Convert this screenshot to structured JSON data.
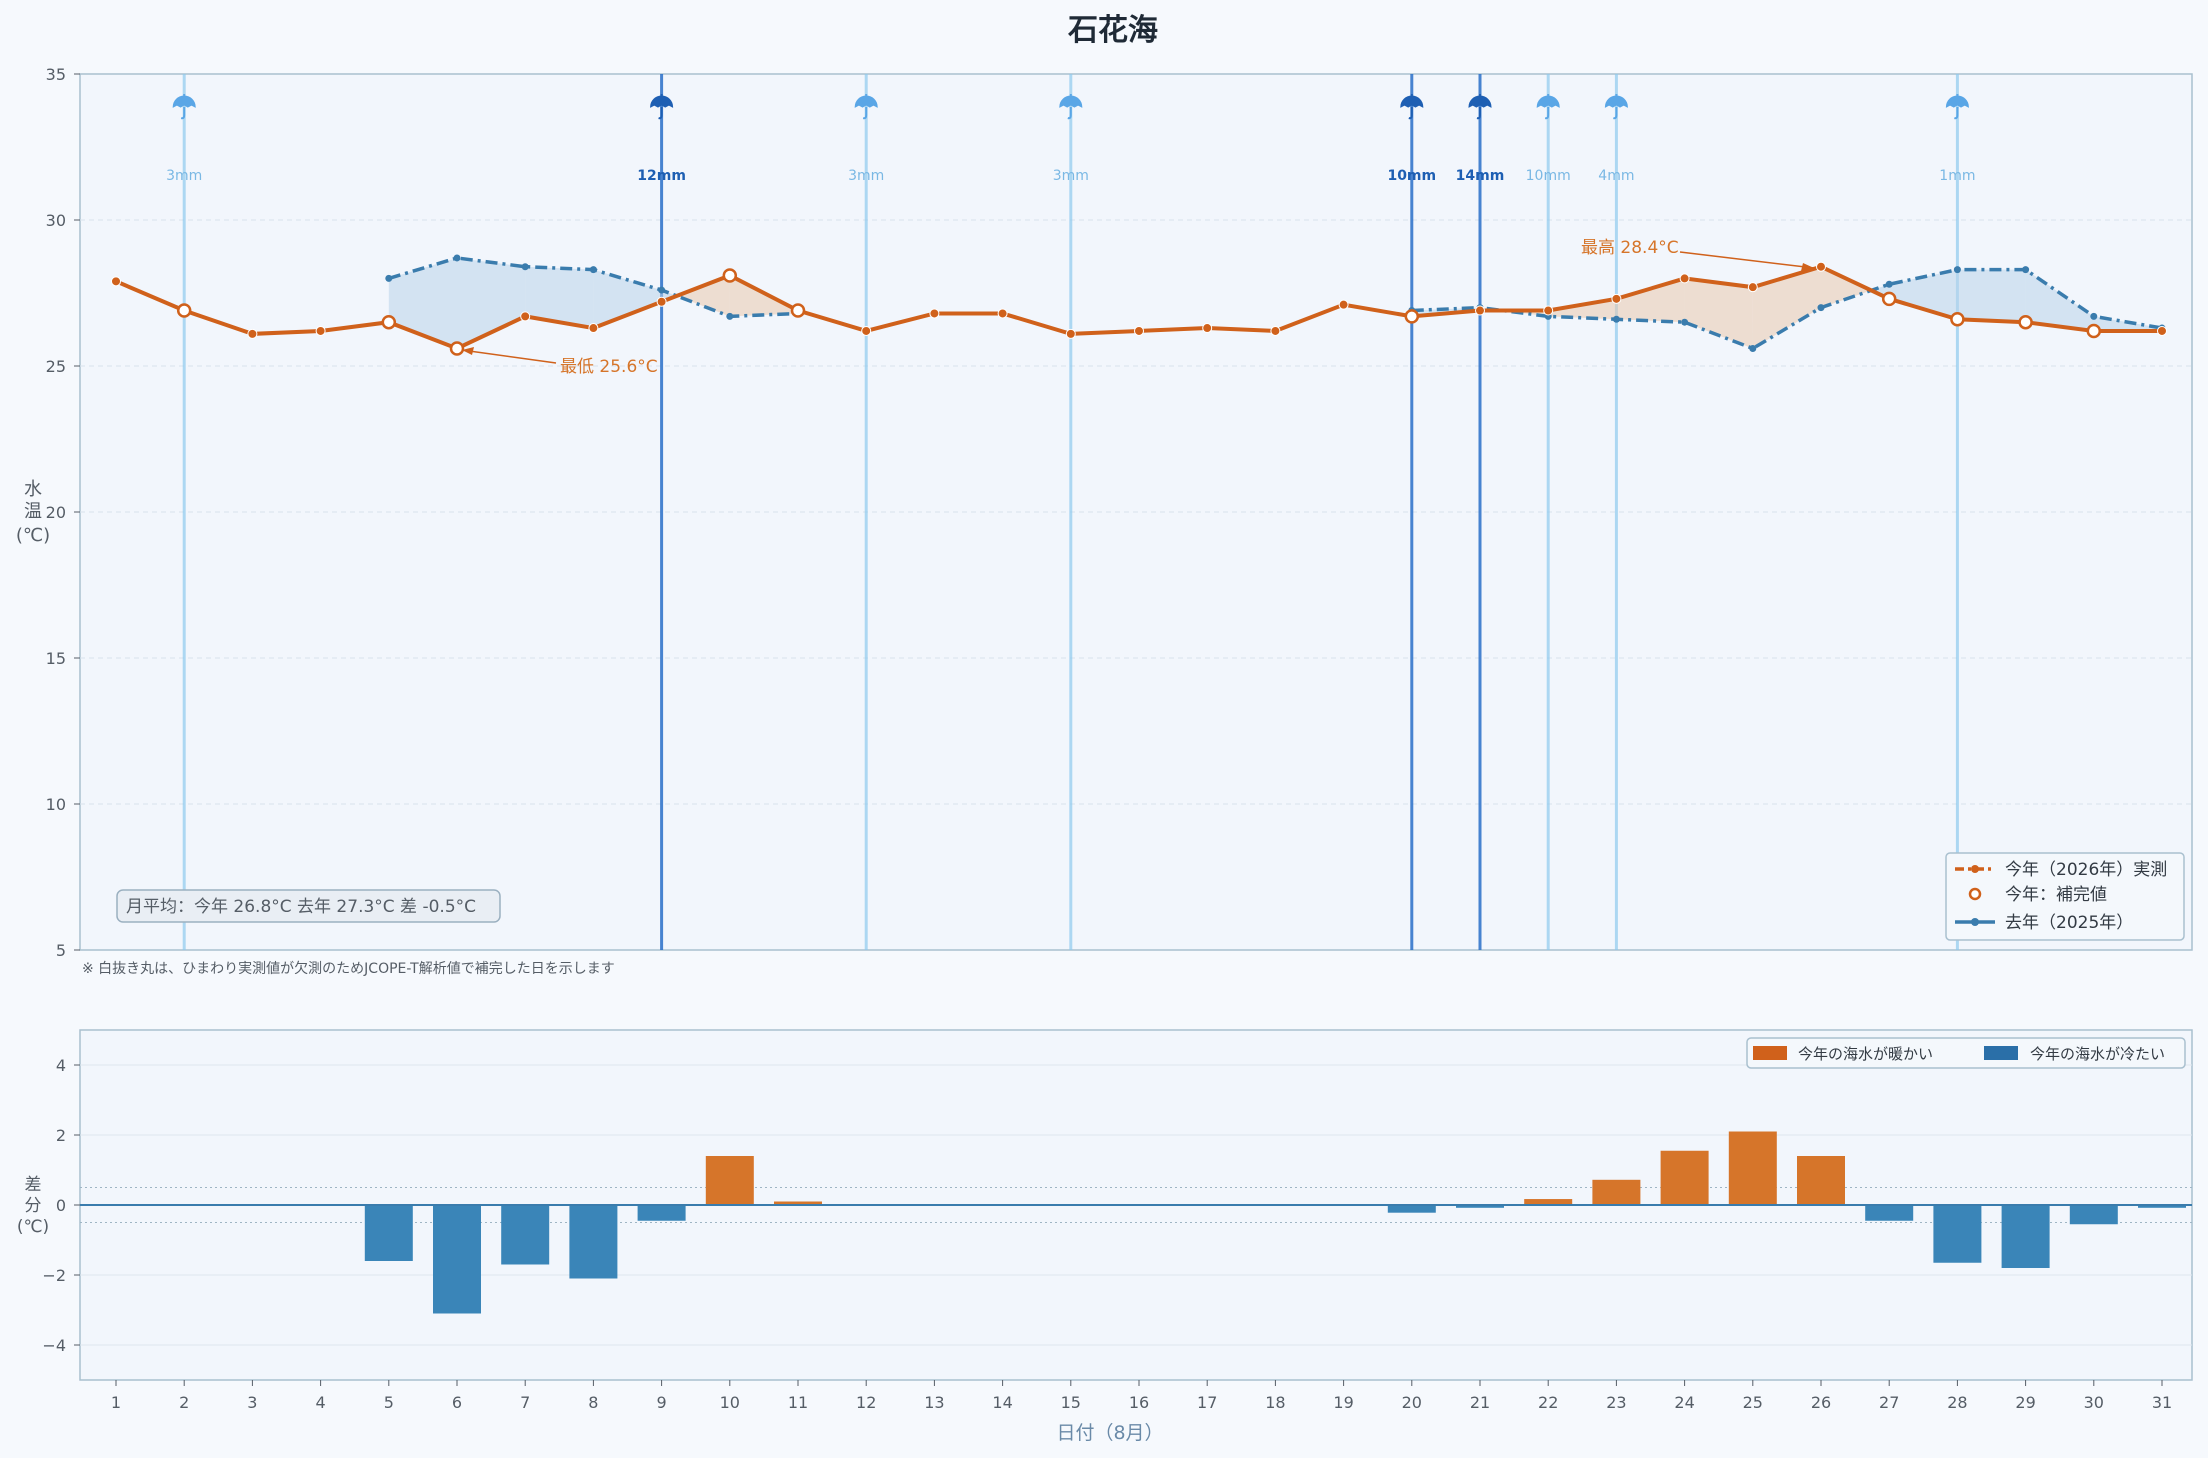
{
  "title": "石花海",
  "footnote": "※ 白抜き丸は、ひまわり実測値が欠測のためJCOPE-T解析値で補完した日を示します",
  "summary": "月平均：今年 26.8°C  去年 27.3°C  差 -0.5°C",
  "annotations": {
    "min_label": "最低 25.6°C",
    "max_label": "最高 28.4°C"
  },
  "colors": {
    "this_year": "#d0611b",
    "last_year": "#3a7cad",
    "warmer": "#d6752a",
    "cooler": "#3a85b8",
    "rain_heavy": "#2a6fc9",
    "rain_light": "#8fcbef",
    "panel_bg": "#f2f6fc",
    "panel_border": "#a9c0cf"
  },
  "icons": {
    "rain": "umbrella-icon"
  },
  "chart_data": [
    {
      "type": "line",
      "ylabel": "水温(℃)",
      "ylim": [
        5,
        35
      ],
      "yticks": [
        5,
        10,
        15,
        20,
        25,
        30,
        35
      ],
      "x": [
        1,
        2,
        3,
        4,
        5,
        6,
        7,
        8,
        9,
        10,
        11,
        12,
        13,
        14,
        15,
        16,
        17,
        18,
        19,
        20,
        21,
        22,
        23,
        24,
        25,
        26,
        27,
        28,
        29,
        30,
        31
      ],
      "legend_placement": "bottom-right",
      "legend": [
        "今年（2026年）実測",
        "今年：補完値",
        "去年（2025年）"
      ],
      "series": [
        {
          "name": "今年（2026年）実測",
          "values": [
            27.9,
            26.9,
            26.1,
            26.2,
            26.5,
            25.6,
            26.7,
            26.3,
            27.2,
            28.1,
            26.9,
            26.2,
            26.8,
            26.8,
            26.1,
            26.2,
            26.3,
            26.2,
            27.1,
            26.7,
            26.9,
            26.9,
            27.3,
            28.0,
            27.7,
            28.4,
            27.3,
            26.6,
            26.5,
            26.2,
            26.2
          ],
          "filled_days": [
            2,
            5,
            6,
            10,
            11,
            20,
            27,
            28,
            29,
            30
          ]
        },
        {
          "name": "去年（2025年）",
          "values": [
            null,
            null,
            null,
            null,
            28.0,
            28.7,
            28.4,
            28.3,
            27.6,
            26.7,
            26.8,
            null,
            null,
            null,
            null,
            null,
            null,
            null,
            null,
            26.9,
            27.0,
            26.7,
            26.6,
            26.5,
            25.6,
            27.0,
            27.8,
            28.3,
            28.3,
            26.7,
            26.3
          ]
        }
      ],
      "rain": [
        {
          "day": 2,
          "label": "3mm",
          "heavy": false
        },
        {
          "day": 9,
          "label": "12mm",
          "heavy": true
        },
        {
          "day": 12,
          "label": "3mm",
          "heavy": false
        },
        {
          "day": 15,
          "label": "3mm",
          "heavy": false
        },
        {
          "day": 20,
          "label": "10mm",
          "heavy": true
        },
        {
          "day": 21,
          "label": "14mm",
          "heavy": true
        },
        {
          "day": 22,
          "label": "10mm",
          "heavy": false
        },
        {
          "day": 23,
          "label": "4mm",
          "heavy": false
        },
        {
          "day": 28,
          "label": "1mm",
          "heavy": false
        }
      ]
    },
    {
      "type": "bar",
      "ylabel": "差分(℃)",
      "xlabel": "日付（8月）",
      "ylim": [
        -5,
        5
      ],
      "yticks": [
        -4,
        -2,
        0,
        2,
        4
      ],
      "categories": [
        1,
        2,
        3,
        4,
        5,
        6,
        7,
        8,
        9,
        10,
        11,
        12,
        13,
        14,
        15,
        16,
        17,
        18,
        19,
        20,
        21,
        22,
        23,
        24,
        25,
        26,
        27,
        28,
        29,
        30,
        31
      ],
      "values": [
        0,
        0,
        0,
        0,
        -1.6,
        -3.1,
        -1.7,
        -2.1,
        -0.45,
        1.4,
        0.1,
        0,
        0,
        0,
        0,
        0,
        0,
        0,
        0,
        -0.22,
        -0.08,
        0.17,
        0.72,
        1.55,
        2.1,
        1.4,
        -0.45,
        -1.65,
        -1.8,
        -0.55,
        -0.08
      ],
      "legend_placement": "top-right",
      "legend": [
        "今年の海水が暖かい",
        "今年の海水が冷たい"
      ]
    }
  ]
}
